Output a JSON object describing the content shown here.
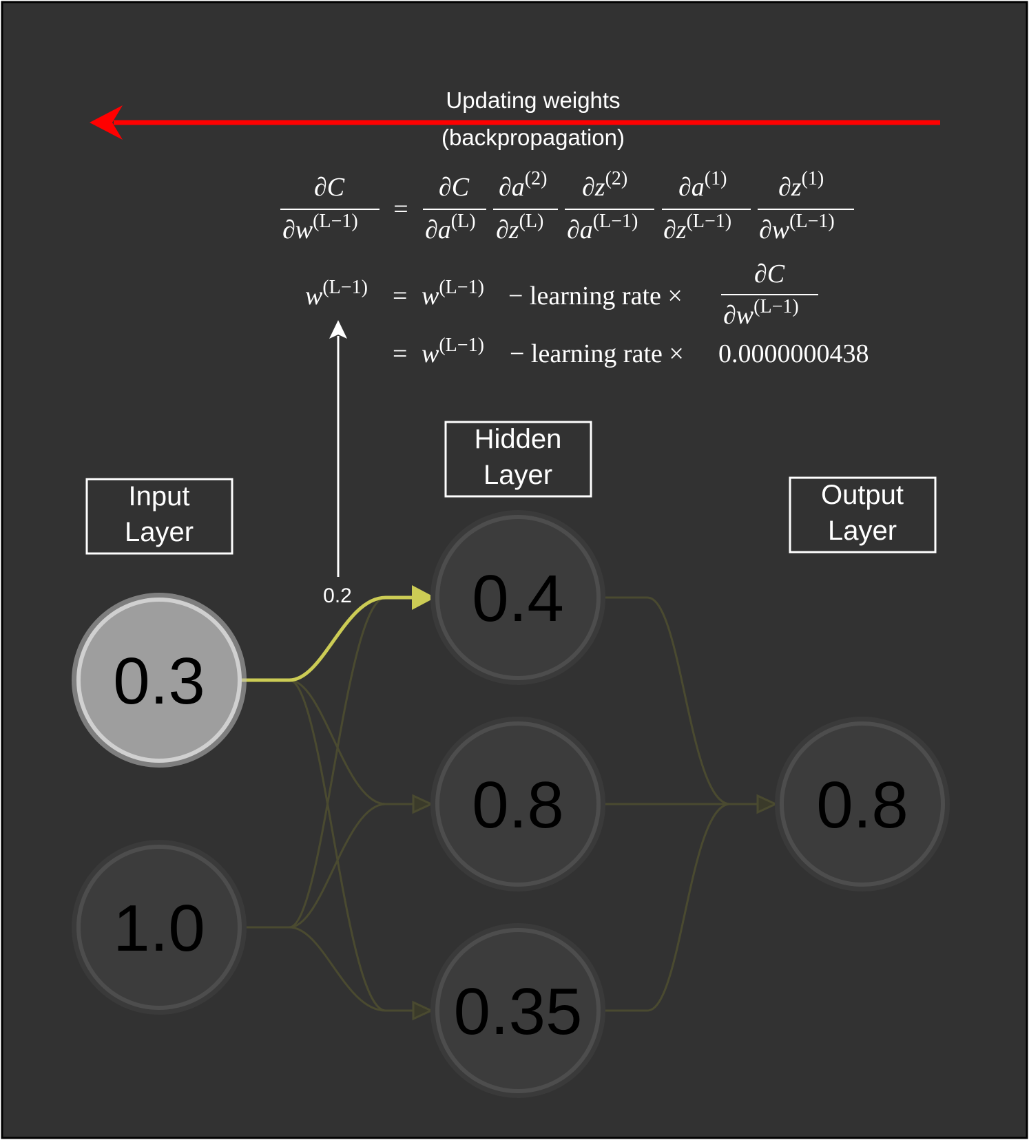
{
  "backprop": {
    "line1": "Updating weights",
    "line2": "(backpropagation)",
    "arrow_color": "#ff0000"
  },
  "equations": {
    "partial": "∂",
    "C": "C",
    "w": "w",
    "a": "a",
    "z": "z",
    "sup_Lm1": "(L−1)",
    "sup_L": "(L)",
    "sup_2": "(2)",
    "sup_1": "(1)",
    "equals": "=",
    "minus_lr_times": "− learning rate ×",
    "gradient_value": "0.0000000438"
  },
  "layers": {
    "input_line1": "Input",
    "input_line2": "Layer",
    "hidden_line1": "Hidden",
    "hidden_line2": "Layer",
    "output_line1": "Output",
    "output_line2": "Layer"
  },
  "nodes": {
    "input": [
      "0.3",
      "1.0"
    ],
    "hidden": [
      "0.4",
      "0.8",
      "0.35"
    ],
    "output": [
      "0.8"
    ]
  },
  "weight_label": "0.2",
  "colors": {
    "background": "#323232",
    "highlight": "#cccc55",
    "dim_edge": "#4a4a30",
    "active_node_fill": "#9e9e9e",
    "active_node_ring": "#d0d0d0",
    "node_fill": "#3c3c3c",
    "node_ring": "#4d4d4d"
  }
}
